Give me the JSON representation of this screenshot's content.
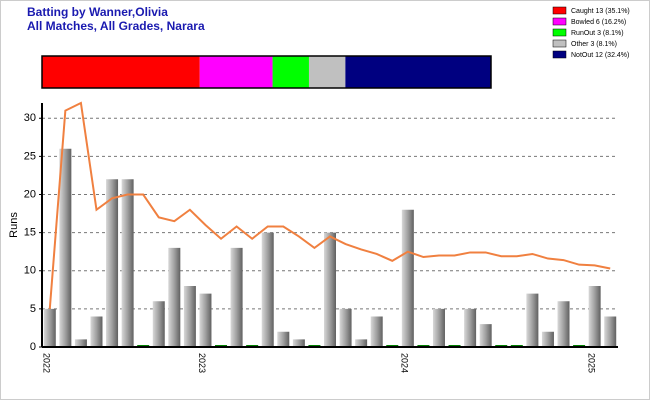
{
  "chart_data": {
    "type": "bar",
    "title": "Batting by Wanner,Olivia",
    "subtitle": "All Matches, All Grades, Narara",
    "y_label": "Runs",
    "dismissals": [
      {
        "name": "Caught 13 (35.1%)",
        "value": 13,
        "color": "#ff0000"
      },
      {
        "name": "Bowled 6 (16.2%)",
        "value": 6,
        "color": "#ff00ff"
      },
      {
        "name": "RunOut 3 (8.1%)",
        "value": 3,
        "color": "#00ff00"
      },
      {
        "name": "Other 3 (8.1%)",
        "value": 3,
        "color": "#c0c0c0"
      },
      {
        "name": "NotOut 12 (32.4%)",
        "value": 12,
        "color": "#000080"
      }
    ],
    "categories": [
      "2022",
      null,
      null,
      null,
      null,
      null,
      null,
      null,
      null,
      null,
      "2023",
      null,
      null,
      null,
      null,
      null,
      null,
      null,
      null,
      null,
      null,
      null,
      null,
      "2024",
      null,
      null,
      null,
      null,
      null,
      null,
      null,
      null,
      null,
      null,
      null,
      "2025",
      null
    ],
    "series": [
      {
        "name": "Runs",
        "color": "#909090",
        "values": [
          5,
          26,
          1,
          4,
          22,
          22,
          0,
          6,
          13,
          8,
          7,
          0,
          13,
          0,
          15,
          2,
          1,
          0,
          15,
          5,
          1,
          4,
          0,
          18,
          0,
          5,
          0,
          5,
          3,
          0,
          0,
          7,
          2,
          6,
          0,
          8,
          4
        ]
      },
      {
        "name": "Average",
        "color": "#f08040",
        "values": [
          5,
          31,
          32,
          18,
          19.5,
          20,
          20,
          17,
          16.5,
          18,
          16,
          14.2,
          15.8,
          14.2,
          15.8,
          15.8,
          14.5,
          13,
          14.5,
          13.5,
          12.8,
          12.2,
          11.3,
          12.5,
          11.8,
          12,
          12,
          12.4,
          12.4,
          11.9,
          11.9,
          12.2,
          11.6,
          11.4,
          10.8,
          10.7,
          10.3
        ]
      }
    ],
    "zero_color": "#008000",
    "ylim": [
      0,
      32
    ],
    "yticks": [
      0,
      5,
      10,
      15,
      20,
      25,
      30
    ],
    "grid": true
  }
}
